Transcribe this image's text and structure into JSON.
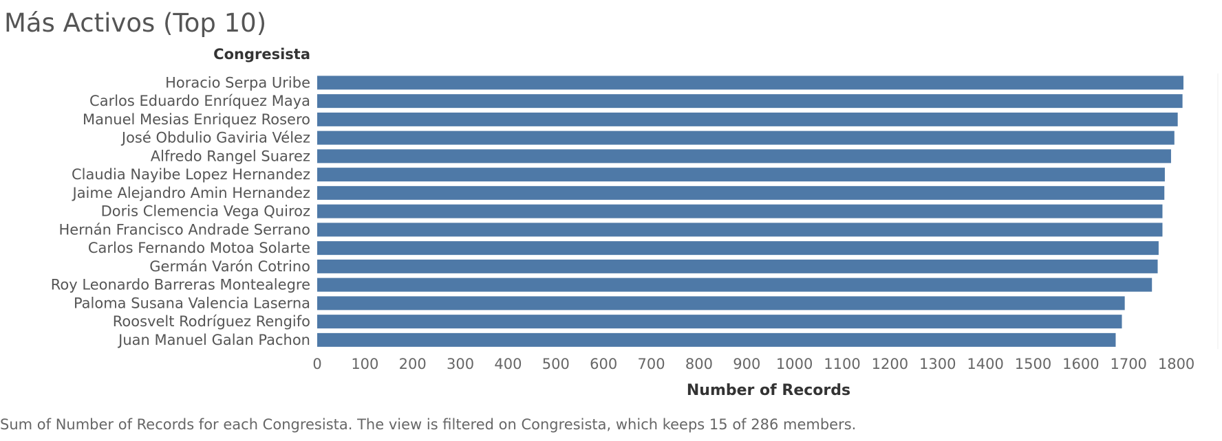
{
  "title": "Más Activos (Top 10)",
  "caption": "Sum of Number of Records for each Congresista. The view is filtered on Congresista, which keeps 15 of 286 members.",
  "chart_data": {
    "type": "bar",
    "orientation": "horizontal",
    "row_header": "Congresista",
    "xlabel": "Number of Records",
    "xlim": [
      0,
      1890
    ],
    "xticks": [
      0,
      100,
      200,
      300,
      400,
      500,
      600,
      700,
      800,
      900,
      1000,
      1100,
      1200,
      1300,
      1400,
      1500,
      1600,
      1700,
      1800
    ],
    "bar_color": "#4e79a7",
    "categories": [
      "Horacio  Serpa Uribe",
      "Carlos Eduardo Enríquez Maya",
      "Manuel Mesias Enriquez Rosero",
      "José Obdulio   Gaviria Vélez",
      "Alfredo Rangel Suarez",
      "Claudia Nayibe  Lopez Hernandez",
      "Jaime Alejandro Amin Hernandez",
      "Doris Clemencia  Vega Quiroz",
      "Hernán Francisco Andrade Serrano",
      "Carlos Fernando Motoa Solarte",
      "Germán Varón Cotrino",
      "Roy Leonardo Barreras Montealegre",
      "Paloma Susana  Valencia Laserna",
      "Roosvelt Rodríguez Rengifo",
      "Juan Manuel Galan Pachon"
    ],
    "values": [
      1815,
      1813,
      1803,
      1796,
      1789,
      1776,
      1775,
      1771,
      1771,
      1763,
      1761,
      1749,
      1692,
      1686,
      1673
    ]
  }
}
